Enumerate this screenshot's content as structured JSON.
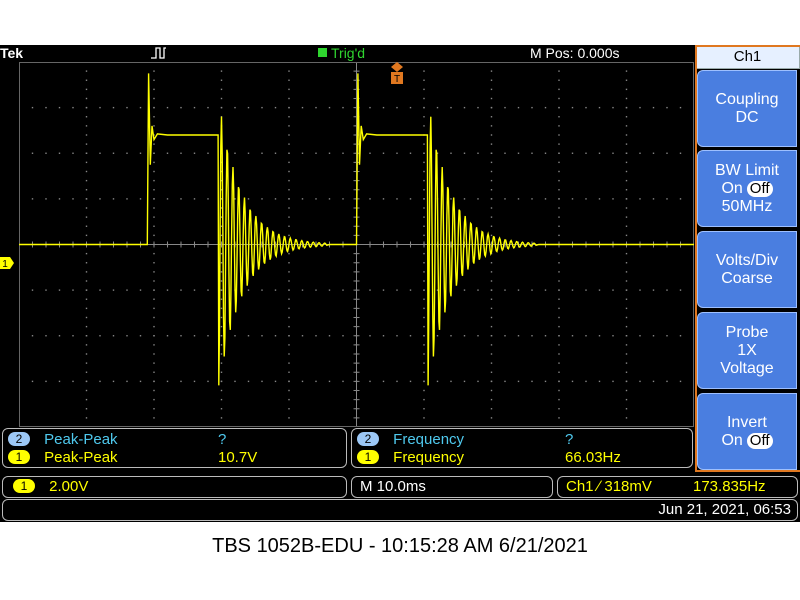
{
  "topbar": {
    "brand": "Tek",
    "trigger_status": "Trig'd",
    "mpos": "M Pos: 0.000s"
  },
  "side_menu": {
    "title": "Ch1",
    "coupling": {
      "line1": "Coupling",
      "line2": "DC"
    },
    "bw_limit": {
      "line1": "BW Limit",
      "on": "On",
      "off": "Off",
      "line3": "50MHz"
    },
    "volts_div": {
      "line1": "Volts/Div",
      "line2": "Coarse"
    },
    "probe": {
      "line1": "Probe",
      "line2": "1X",
      "line3": "Voltage"
    },
    "invert": {
      "line1": "Invert",
      "on": "On",
      "off": "Off"
    }
  },
  "measurements": {
    "left": [
      {
        "ch": "2",
        "name": "Peak-Peak",
        "value": "?"
      },
      {
        "ch": "1",
        "name": "Peak-Peak",
        "value": "10.7V"
      }
    ],
    "right": [
      {
        "ch": "2",
        "name": "Frequency",
        "value": "?"
      },
      {
        "ch": "1",
        "name": "Frequency",
        "value": "66.03Hz"
      }
    ]
  },
  "status": {
    "ch1_chip": "1",
    "ch1_scale": "2.00V",
    "timebase": "M 10.0ms",
    "trigger": "Ch1 ∕ 318mV",
    "trigger_freq": "173.835Hz",
    "datetime": "Jun 21, 2021, 06:53"
  },
  "marker_ch1": "1",
  "caption": "TBS 1052B-EDU - 10:15:28 AM   6/21/2021",
  "colors": {
    "trace": "#ffff00",
    "menu": "#4a7ee0",
    "trig": "#2fd52f",
    "frame": "#e07820"
  },
  "chart_data": {
    "type": "line",
    "x_unit": "ms",
    "y_unit": "V",
    "x_range": [
      -50,
      50
    ],
    "y_range": [
      -8,
      8
    ],
    "x_div": 10,
    "y_div": 2,
    "series": [
      {
        "x": [
          -50,
          -31,
          -30.7,
          -30.4,
          -30,
          -29.5,
          -28,
          -20,
          -19.8,
          -19.5,
          -19,
          -18,
          -16,
          -14,
          -12,
          -10,
          -8,
          -6,
          -4,
          0,
          0.3,
          0.6,
          1,
          1.5,
          3,
          10.5,
          10.8,
          11.2,
          11.6,
          12,
          13,
          15,
          17,
          19,
          21,
          23,
          26,
          30,
          50
        ],
        "y": [
          0,
          0,
          7,
          3,
          5,
          4.7,
          4.8,
          4.8,
          2,
          -6.5,
          5,
          -3,
          2,
          -1.2,
          0.6,
          0.3,
          0.1,
          0,
          0,
          0,
          7,
          3,
          5,
          4.7,
          4.8,
          4.8,
          2,
          -6.5,
          5,
          -3,
          2,
          -1.2,
          0.6,
          0.3,
          0.1,
          0,
          0,
          0,
          0
        ]
      }
    ]
  }
}
